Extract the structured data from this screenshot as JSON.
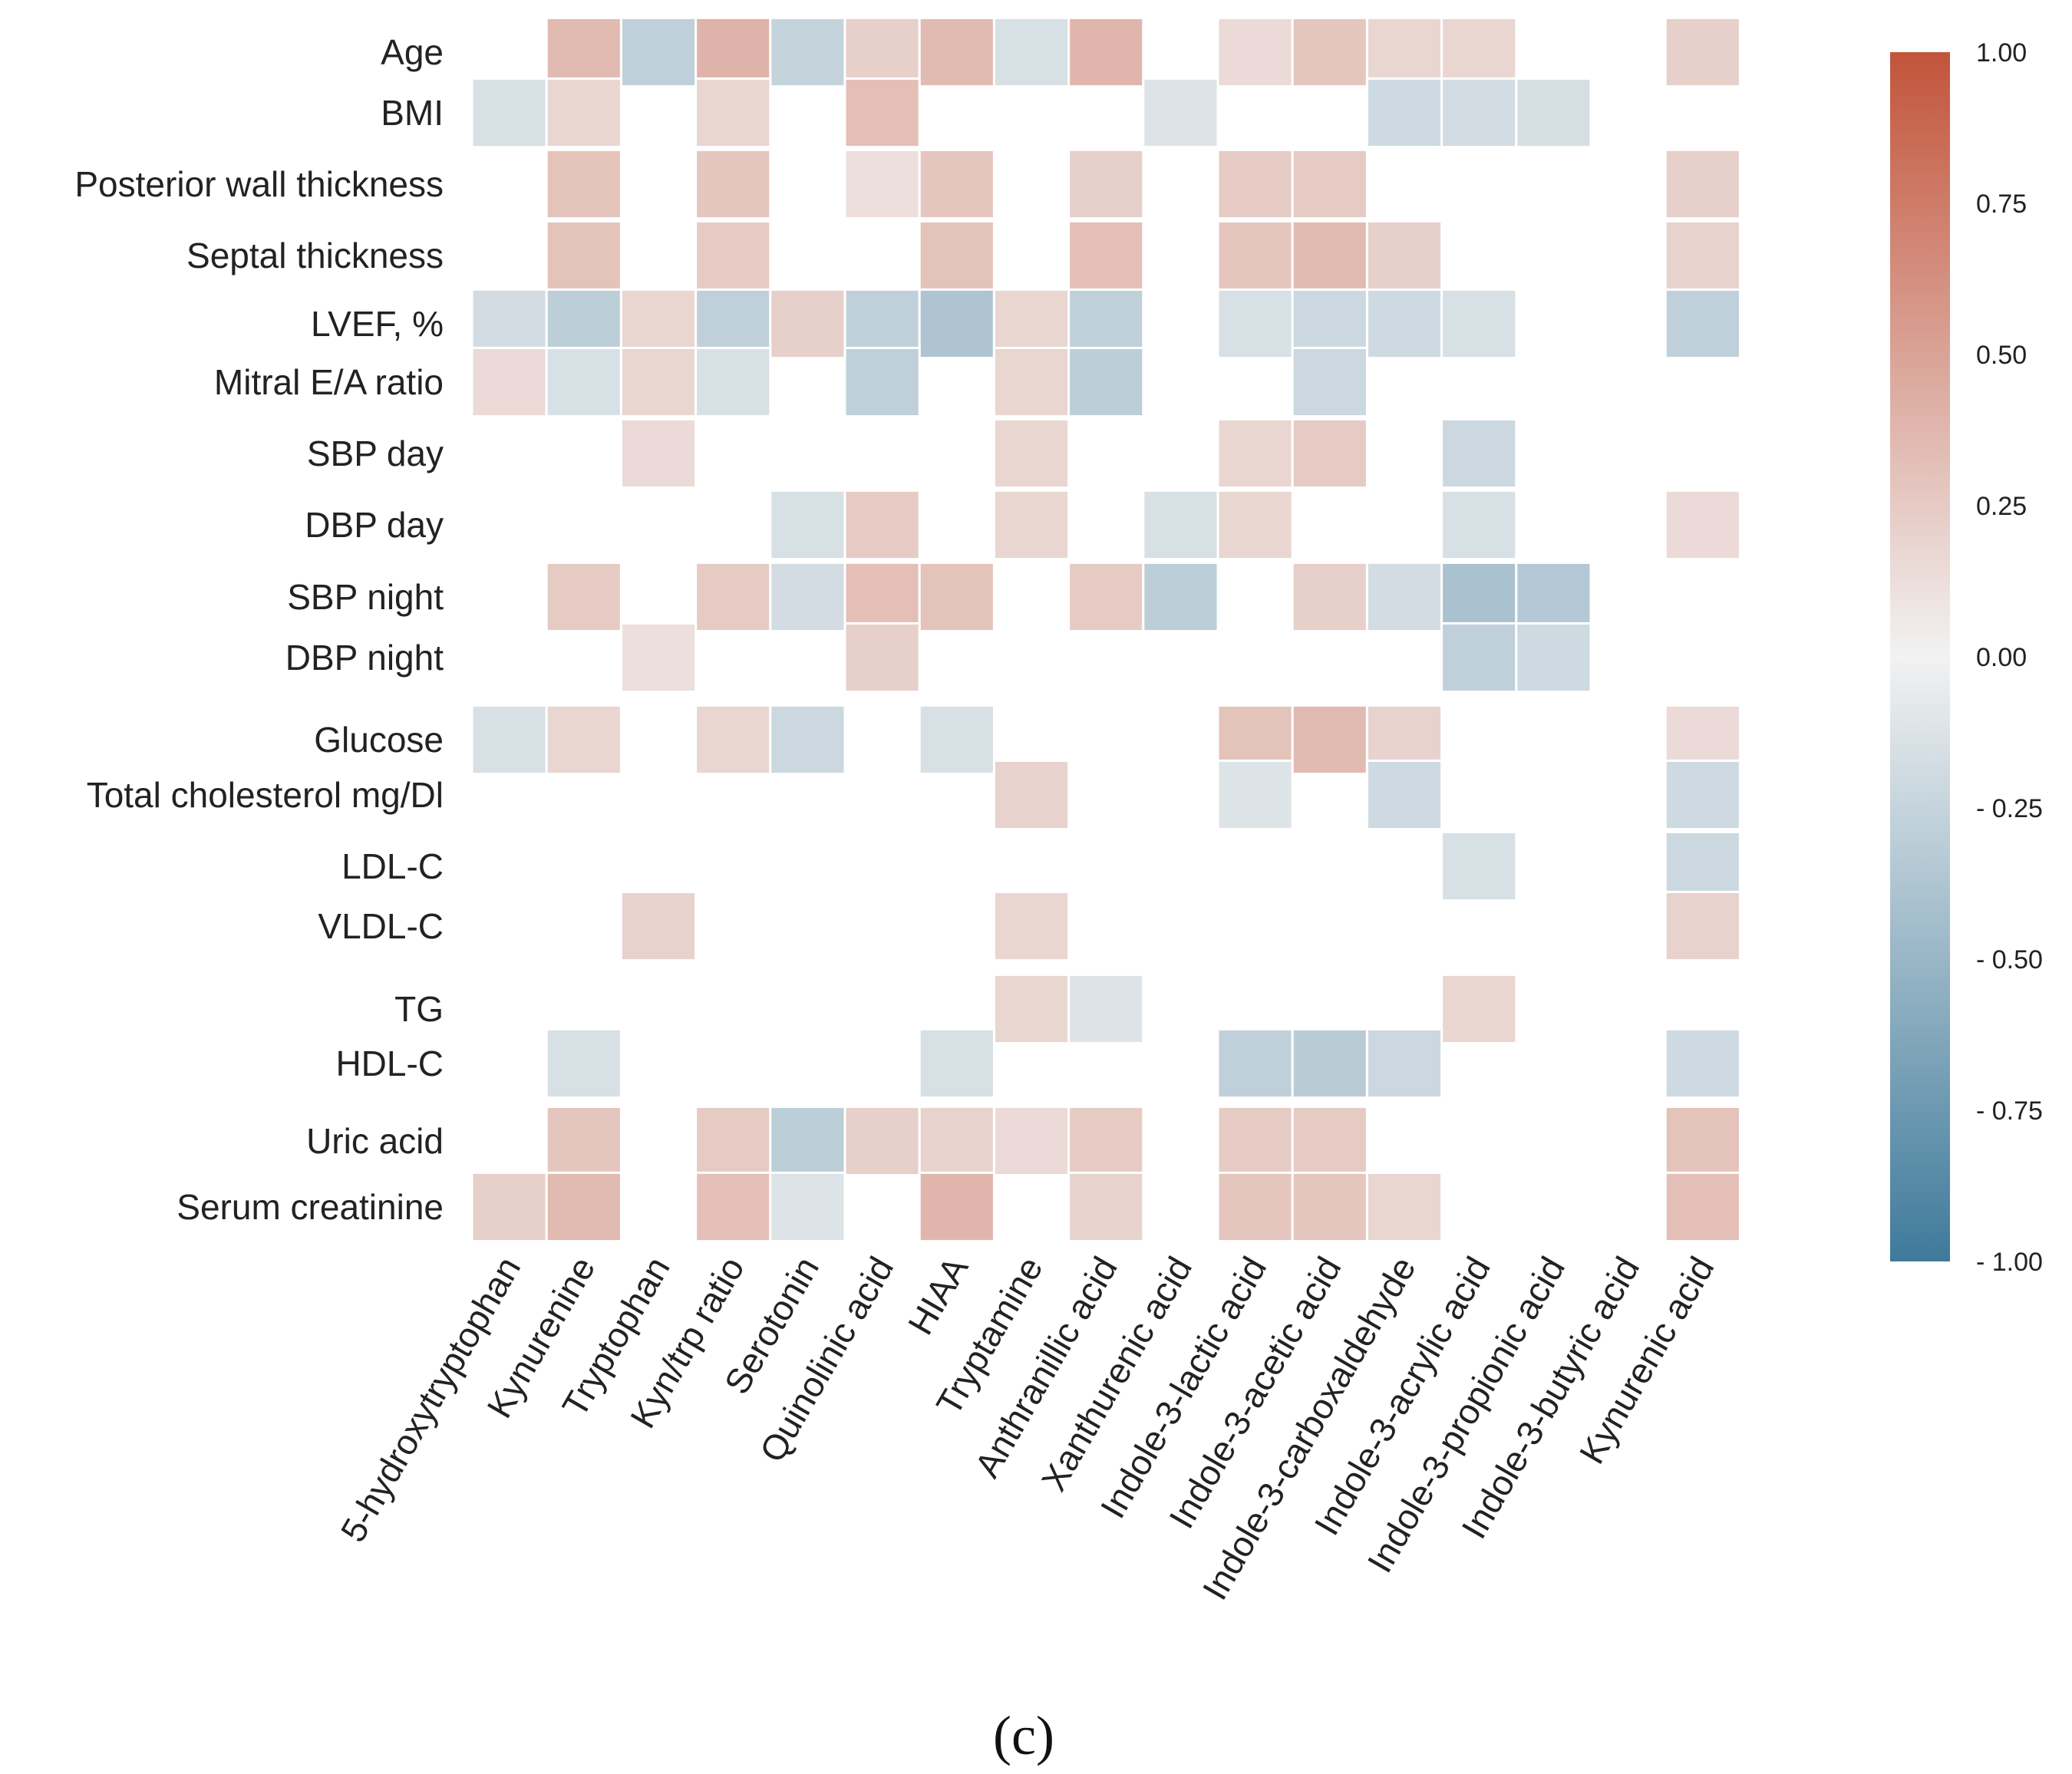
{
  "chart_data": {
    "type": "heatmap",
    "title": "",
    "caption": "(c)",
    "rows": [
      "Age",
      "BMI",
      "Posterior wall thickness",
      "Septal thickness",
      "LVEF, %",
      "Mitral E/A ratio",
      "SBP day",
      "DBP day",
      "SBP night",
      "DBP night",
      "Glucose",
      "Total cholesterol mg/Dl",
      "LDL-C",
      "VLDL-C",
      "TG",
      "HDL-C",
      "Uric acid",
      "Serum creatinine"
    ],
    "columns": [
      "5-hydroxytryptophan",
      "Kynurenine",
      "Tryptophan",
      "Kyn/trp ratio",
      "Serotonin",
      "Quinolinic acid",
      "HIAA",
      "Tryptamine",
      "Anthranillic acid",
      "Xanthurenic acid",
      "Indole-3-lactic acid",
      "Indole-3-acetic acid",
      "Indole-3-carboxaldehyde",
      "Indole-3-acrylic acid",
      "Indole-3-propionic acid",
      "Indole-3-butyric acid",
      "Kynurenic acid"
    ],
    "values": [
      [
        null,
        0.35,
        -0.28,
        0.4,
        -0.25,
        0.22,
        0.35,
        -0.15,
        0.38,
        null,
        0.15,
        0.28,
        0.18,
        0.18,
        null,
        null,
        0.22
      ],
      [
        -0.15,
        0.18,
        null,
        0.18,
        null,
        0.32,
        null,
        null,
        null,
        -0.12,
        null,
        null,
        -0.2,
        -0.18,
        -0.16,
        null,
        null
      ],
      [
        null,
        0.3,
        null,
        0.28,
        null,
        0.12,
        0.28,
        null,
        0.22,
        null,
        0.25,
        0.25,
        null,
        null,
        null,
        null,
        0.22
      ],
      [
        null,
        0.3,
        null,
        0.25,
        null,
        null,
        0.3,
        null,
        0.32,
        null,
        0.28,
        0.35,
        0.22,
        null,
        null,
        null,
        0.2
      ],
      [
        -0.18,
        -0.3,
        0.18,
        -0.28,
        0.22,
        -0.28,
        -0.38,
        0.18,
        -0.28,
        null,
        -0.15,
        -0.22,
        -0.2,
        -0.15,
        null,
        null,
        -0.28
      ],
      [
        0.15,
        -0.15,
        0.18,
        -0.15,
        null,
        -0.28,
        null,
        0.18,
        -0.3,
        null,
        null,
        -0.22,
        null,
        null,
        null,
        null,
        null
      ],
      [
        null,
        null,
        0.15,
        null,
        null,
        null,
        null,
        0.18,
        null,
        null,
        0.18,
        0.25,
        null,
        -0.22,
        null,
        null,
        null
      ],
      [
        null,
        null,
        null,
        null,
        -0.15,
        0.25,
        null,
        0.18,
        null,
        -0.15,
        0.18,
        null,
        null,
        -0.15,
        null,
        null,
        0.15
      ],
      [
        null,
        0.25,
        null,
        0.25,
        -0.18,
        0.32,
        0.3,
        null,
        0.25,
        -0.3,
        null,
        0.22,
        -0.18,
        -0.4,
        -0.35,
        null,
        null
      ],
      [
        null,
        null,
        0.12,
        null,
        null,
        0.22,
        null,
        null,
        null,
        null,
        null,
        null,
        null,
        -0.28,
        -0.2,
        null,
        null
      ],
      [
        -0.15,
        0.18,
        null,
        0.18,
        -0.22,
        null,
        -0.15,
        null,
        null,
        null,
        0.3,
        0.35,
        0.2,
        null,
        null,
        null,
        0.15
      ],
      [
        null,
        null,
        null,
        null,
        null,
        null,
        null,
        0.2,
        null,
        null,
        -0.12,
        null,
        -0.2,
        null,
        null,
        null,
        -0.2
      ],
      [
        null,
        null,
        null,
        null,
        null,
        null,
        null,
        null,
        null,
        null,
        null,
        null,
        null,
        -0.15,
        null,
        null,
        -0.22
      ],
      [
        null,
        null,
        0.2,
        null,
        null,
        null,
        null,
        0.18,
        null,
        null,
        null,
        null,
        null,
        null,
        null,
        null,
        0.2
      ],
      [
        null,
        null,
        null,
        null,
        null,
        null,
        null,
        0.18,
        -0.12,
        null,
        null,
        null,
        null,
        0.18,
        null,
        null,
        null
      ],
      [
        null,
        -0.15,
        null,
        null,
        null,
        null,
        -0.15,
        null,
        null,
        null,
        -0.28,
        -0.32,
        -0.22,
        null,
        null,
        null,
        -0.2
      ],
      [
        null,
        0.28,
        null,
        0.25,
        -0.3,
        0.22,
        0.2,
        0.15,
        0.25,
        null,
        0.25,
        0.25,
        null,
        null,
        null,
        null,
        0.3
      ],
      [
        0.22,
        0.35,
        null,
        0.32,
        -0.12,
        null,
        0.38,
        null,
        0.2,
        null,
        0.28,
        0.28,
        0.18,
        null,
        null,
        null,
        0.32
      ]
    ],
    "colorbar": {
      "min": -1.0,
      "max": 1.0,
      "ticks": [
        1.0,
        0.75,
        0.5,
        0.25,
        0.0,
        -0.25,
        -0.5,
        -0.75,
        -1.0
      ],
      "tick_labels": [
        "1.00",
        "0.75",
        "0.50",
        "0.25",
        "0.00",
        "- 0.25",
        "- 0.50",
        "- 0.75",
        "- 1.00"
      ],
      "colors": {
        "positive": "#c2543b",
        "neutral": "#f2f2f2",
        "negative": "#3f7a9b"
      }
    }
  }
}
